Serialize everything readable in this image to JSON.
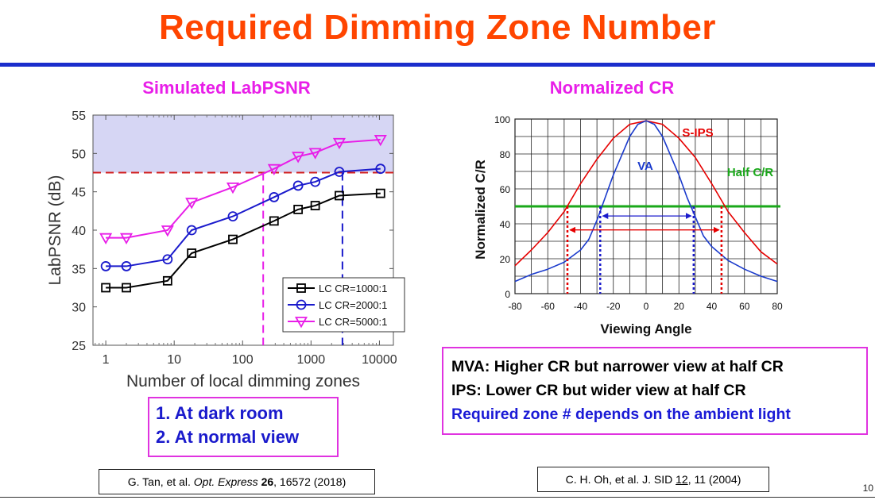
{
  "slide": {
    "title": "Required Dimming Zone Number",
    "page_number": "10"
  },
  "left_panel": {
    "subtitle": "Simulated LabPSNR",
    "notes": [
      "1.  At dark room",
      "2.  At normal view"
    ],
    "citation": {
      "authors": "G. Tan, et al. ",
      "journal": "Opt. Express",
      "volume": "26",
      "rest": ", 16572 (2018)"
    }
  },
  "right_panel": {
    "subtitle": "Normalized CR",
    "notes": [
      {
        "text": "MVA: Higher CR but narrower view at half CR",
        "color": "#000000"
      },
      {
        "text": "IPS: Lower CR but wider view at half CR",
        "color": "#000000"
      },
      {
        "text": "Required zone # depends on the ambient light",
        "color": "#1a1ad6"
      }
    ],
    "citation": {
      "prefix": "C. H. Oh, et al. J. SID ",
      "volume": "12",
      "rest": ", 11 (2004)"
    }
  },
  "colors": {
    "title": "#ff4500",
    "rule": "#1a2dcc",
    "magenta": "#e81ee8",
    "blue": "#1a1acc",
    "red": "#e60000",
    "green": "#1aa81a"
  },
  "chart_data": [
    {
      "type": "line",
      "xscale": "log",
      "xlabel": "Number of local dimming zones",
      "ylabel": "LabPSNR (dB)",
      "xlim": [
        0.65,
        16000
      ],
      "ylim": [
        25,
        55
      ],
      "xticks": [
        1,
        10,
        100,
        1000,
        10000
      ],
      "xtick_labels": [
        "1",
        "10",
        "100",
        "1000",
        "10000"
      ],
      "yticks": [
        25,
        30,
        35,
        40,
        45,
        50,
        55
      ],
      "legend": "bottom-right",
      "shaded_region_y": [
        47.5,
        55
      ],
      "reference_lines": {
        "horizontal_y": 47.5,
        "vertical_magenta_x": 200,
        "vertical_blue_x": 2880
      },
      "series": [
        {
          "name": "LC CR=1000:1",
          "marker": "square",
          "color": "#000000",
          "x": [
            1,
            2,
            8,
            18,
            72,
            288,
            648,
            1152,
            2592,
            10368
          ],
          "y": [
            32.5,
            32.5,
            33.4,
            37.0,
            38.8,
            41.2,
            42.7,
            43.2,
            44.5,
            44.8
          ]
        },
        {
          "name": "LC CR=2000:1",
          "marker": "circle",
          "color": "#1a1acc",
          "x": [
            1,
            2,
            8,
            18,
            72,
            288,
            648,
            1152,
            2592,
            10368
          ],
          "y": [
            35.3,
            35.3,
            36.2,
            40.0,
            41.8,
            44.3,
            45.8,
            46.3,
            47.6,
            48.0
          ]
        },
        {
          "name": "LC CR=5000:1",
          "marker": "triangle-down",
          "color": "#e81ee8",
          "x": [
            1,
            2,
            8,
            18,
            72,
            288,
            648,
            1152,
            2592,
            10368
          ],
          "y": [
            39.0,
            39.0,
            40.0,
            43.6,
            45.6,
            48.0,
            49.6,
            50.1,
            51.4,
            51.8
          ]
        }
      ]
    },
    {
      "type": "line",
      "xlabel": "Viewing Angle",
      "ylabel": "Normalized C/R",
      "xlim": [
        -80,
        80
      ],
      "ylim": [
        0,
        100
      ],
      "xticks": [
        -80,
        -60,
        -40,
        -20,
        0,
        20,
        40,
        60,
        80
      ],
      "yticks": [
        0,
        20,
        40,
        60,
        80,
        100
      ],
      "grid": true,
      "annotations": {
        "sips_label": "S-IPS",
        "va_label": "VA",
        "half_label": "Half C/R"
      },
      "half_cr_y": 50,
      "va_half_angles": [
        -28,
        29
      ],
      "ips_half_angles": [
        -48,
        46
      ],
      "series": [
        {
          "name": "S-IPS",
          "color": "#e60000",
          "x": [
            -80,
            -70,
            -60,
            -50,
            -45,
            -40,
            -30,
            -20,
            -10,
            0,
            10,
            20,
            30,
            40,
            45,
            50,
            60,
            70,
            80
          ],
          "y": [
            16,
            25,
            35,
            47,
            55,
            63,
            77,
            89,
            97,
            99,
            97,
            89,
            78,
            63,
            55,
            47,
            35,
            24,
            17
          ]
        },
        {
          "name": "VA",
          "color": "#1a3acc",
          "x": [
            -80,
            -70,
            -60,
            -50,
            -40,
            -35,
            -30,
            -25,
            -20,
            -15,
            -10,
            -5,
            0,
            5,
            10,
            15,
            20,
            25,
            30,
            35,
            40,
            50,
            60,
            70,
            80
          ],
          "y": [
            7,
            11,
            14,
            18,
            25,
            31,
            42,
            55,
            68,
            79,
            90,
            97,
            99,
            97,
            90,
            79,
            68,
            55,
            44,
            33,
            27,
            19,
            14,
            10,
            7
          ]
        }
      ]
    }
  ]
}
